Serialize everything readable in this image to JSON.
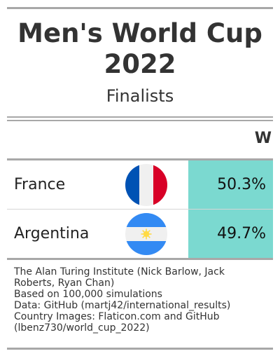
{
  "title_line1": "Men's World Cup",
  "title_line2": "2022",
  "subtitle": "Finalists",
  "column_header": "W",
  "highlight_color": "#7bd9d0",
  "rows": [
    {
      "team": "France",
      "flag_icon": "france-flag-icon",
      "win_pct": "50.3%"
    },
    {
      "team": "Argentina",
      "flag_icon": "argentina-flag-icon",
      "win_pct": "49.7%"
    }
  ],
  "footer": {
    "line1": "The Alan Turing Institute (Nick Barlow, Jack",
    "line2": "Roberts, Ryan Chan)",
    "line3": "Based on 100,000 simulations",
    "line4": "Data: GitHub (martj42/international_results)",
    "line5": "Country Images: Flaticon.com and GitHub",
    "line6": "(lbenz730/world_cup_2022)"
  }
}
